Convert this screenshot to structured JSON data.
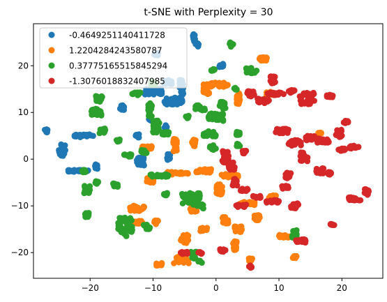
{
  "chart_data": {
    "type": "scatter",
    "title": "t-SNE with Perplexity = 30",
    "xlabel": "",
    "ylabel": "",
    "xlim": [
      -29.0,
      26.5
    ],
    "ylim": [
      -25.5,
      29.0
    ],
    "x_ticks": [
      {
        "value": -20,
        "label": "−20"
      },
      {
        "value": -10,
        "label": "−10"
      },
      {
        "value": 0,
        "label": "0"
      },
      {
        "value": 10,
        "label": "10"
      },
      {
        "value": 20,
        "label": "20"
      }
    ],
    "y_ticks": [
      {
        "value": -20,
        "label": "−20"
      },
      {
        "value": -10,
        "label": "−10"
      },
      {
        "value": 0,
        "label": "0"
      },
      {
        "value": 10,
        "label": "10"
      },
      {
        "value": 20,
        "label": "20"
      }
    ],
    "grid": false,
    "legend_position": "top-left",
    "series": [
      {
        "name": "-0.4649251140411728",
        "color": "#1f77b4",
        "clusters": [
          {
            "x": -27.0,
            "y": 6.0,
            "dx": 0.3,
            "dy": 0.4
          },
          {
            "x": -24.5,
            "y": 2.0,
            "dx": 0.6,
            "dy": 1.3
          },
          {
            "x": -21.0,
            "y": 5.0,
            "dx": 1.5,
            "dy": 0.3
          },
          {
            "x": -22.0,
            "y": -2.5,
            "dx": 1.8,
            "dy": 0.2
          },
          {
            "x": -19.0,
            "y": -1.5,
            "dx": 0.3,
            "dy": 0.6
          },
          {
            "x": -12.0,
            "y": -0.5,
            "dx": 0.6,
            "dy": 0.9
          },
          {
            "x": -7.5,
            "y": 0.5,
            "dx": 0.3,
            "dy": 0.7
          },
          {
            "x": -5.5,
            "y": 14.5,
            "dx": 0.3,
            "dy": 2.5
          },
          {
            "x": -7.5,
            "y": 16.5,
            "dx": 0.7,
            "dy": 0.5
          },
          {
            "x": -10.0,
            "y": 14.5,
            "dx": 1.5,
            "dy": 0.7
          },
          {
            "x": -7.0,
            "y": 12.5,
            "dx": 1.2,
            "dy": 0.8
          },
          {
            "x": -3.5,
            "y": 26.0,
            "dx": 0.2,
            "dy": 0.8
          },
          {
            "x": -3.0,
            "y": 24.5,
            "dx": 0.3,
            "dy": 0.4
          },
          {
            "x": 0.8,
            "y": 20.0,
            "dx": 0.4,
            "dy": 0.4
          },
          {
            "x": -9.5,
            "y": 22.5,
            "dx": 0.3,
            "dy": 0.3
          },
          {
            "x": -15.0,
            "y": 11.0,
            "dx": 0.4,
            "dy": 0.6
          },
          {
            "x": -12.5,
            "y": 5.0,
            "dx": 0.3,
            "dy": 0.4
          },
          {
            "x": -10.5,
            "y": 8.5,
            "dx": 0.2,
            "dy": 0.3
          },
          {
            "x": -8.0,
            "y": 7.0,
            "dx": 0.2,
            "dy": 0.3
          }
        ]
      },
      {
        "name": "1.2204284243580787",
        "color": "#ff7f0e",
        "clusters": [
          {
            "x": 7.5,
            "y": 21.5,
            "dx": 0.6,
            "dy": 0.4
          },
          {
            "x": -1.5,
            "y": 15.0,
            "dx": 0.5,
            "dy": 1.2
          },
          {
            "x": 0.5,
            "y": 16.0,
            "dx": 1.5,
            "dy": 0.5
          },
          {
            "x": 3.5,
            "y": 13.0,
            "dx": 0.3,
            "dy": 1.2
          },
          {
            "x": 8.5,
            "y": 14.0,
            "dx": 0.5,
            "dy": 0.5
          },
          {
            "x": -11.0,
            "y": 2.5,
            "dx": 0.8,
            "dy": 0.3
          },
          {
            "x": -6.5,
            "y": 3.0,
            "dx": 0.3,
            "dy": 1.4
          },
          {
            "x": -3.5,
            "y": 3.5,
            "dx": 0.3,
            "dy": 0.8
          },
          {
            "x": -6.0,
            "y": -3.0,
            "dx": 1.8,
            "dy": 0.3
          },
          {
            "x": -2.0,
            "y": -2.5,
            "dx": 1.3,
            "dy": 0.4
          },
          {
            "x": -10.5,
            "y": -4.5,
            "dx": 0.6,
            "dy": 0.6
          },
          {
            "x": -12.5,
            "y": -10.5,
            "dx": 1.2,
            "dy": 0.6
          },
          {
            "x": -12.5,
            "y": -13.5,
            "dx": 1.0,
            "dy": 0.3
          },
          {
            "x": -9.0,
            "y": -22.5,
            "dx": 0.5,
            "dy": 0.3
          },
          {
            "x": -3.5,
            "y": -9.5,
            "dx": 0.6,
            "dy": 1.8
          },
          {
            "x": 0.5,
            "y": -6.5,
            "dx": 0.5,
            "dy": 1.2
          },
          {
            "x": 2.0,
            "y": -3.5,
            "dx": 1.5,
            "dy": 0.4
          },
          {
            "x": -5.0,
            "y": -17.0,
            "dx": 0.6,
            "dy": 1.0
          },
          {
            "x": -5.5,
            "y": -21.5,
            "dx": 1.2,
            "dy": 0.8
          },
          {
            "x": -2.0,
            "y": -15.0,
            "dx": 0.6,
            "dy": 0.4
          },
          {
            "x": 1.5,
            "y": -13.0,
            "dx": 0.5,
            "dy": 0.8
          },
          {
            "x": 3.5,
            "y": -15.0,
            "dx": 0.8,
            "dy": 0.6
          },
          {
            "x": 3.0,
            "y": -18.5,
            "dx": 0.3,
            "dy": 1.0
          },
          {
            "x": 5.5,
            "y": -21.5,
            "dx": 0.3,
            "dy": 0.3
          },
          {
            "x": 5.0,
            "y": -9.5,
            "dx": 1.2,
            "dy": 0.4
          },
          {
            "x": 6.5,
            "y": -12.5,
            "dx": 0.5,
            "dy": 0.6
          },
          {
            "x": 11.0,
            "y": -16.5,
            "dx": 1.0,
            "dy": 0.3
          },
          {
            "x": 12.5,
            "y": -21.0,
            "dx": 0.3,
            "dy": 0.3
          },
          {
            "x": 9.0,
            "y": -8.0,
            "dx": 0.6,
            "dy": 0.3
          },
          {
            "x": 16.5,
            "y": 5.5,
            "dx": 0.3,
            "dy": 0.3
          },
          {
            "x": -9.5,
            "y": -13.5,
            "dx": 0.3,
            "dy": 0.5
          }
        ]
      },
      {
        "name": "0.37775165515845294",
        "color": "#2ca02c",
        "clusters": [
          {
            "x": -18.5,
            "y": 13.0,
            "dx": 0.6,
            "dy": 0.7
          },
          {
            "x": -19.0,
            "y": 10.0,
            "dx": 0.8,
            "dy": 0.8
          },
          {
            "x": -18.0,
            "y": 6.0,
            "dx": 0.5,
            "dy": 0.6
          },
          {
            "x": -15.5,
            "y": 4.0,
            "dx": 0.3,
            "dy": 0.3
          },
          {
            "x": -10.0,
            "y": 16.5,
            "dx": 0.4,
            "dy": 0.6
          },
          {
            "x": -10.5,
            "y": 10.5,
            "dx": 0.3,
            "dy": 1.5
          },
          {
            "x": -12.5,
            "y": 14.0,
            "dx": 0.8,
            "dy": 0.3
          },
          {
            "x": -9.5,
            "y": 7.0,
            "dx": 0.5,
            "dy": 1.3
          },
          {
            "x": -8.0,
            "y": 5.5,
            "dx": 0.6,
            "dy": 0.3
          },
          {
            "x": -14.0,
            "y": 0.8,
            "dx": 0.6,
            "dy": 0.3
          },
          {
            "x": -11.5,
            "y": 1.5,
            "dx": 0.5,
            "dy": 0.5
          },
          {
            "x": -21.0,
            "y": -2.5,
            "dx": 0.3,
            "dy": 0.3
          },
          {
            "x": -20.5,
            "y": -6.5,
            "dx": 0.5,
            "dy": 0.8
          },
          {
            "x": -19.0,
            "y": -5.0,
            "dx": 0.3,
            "dy": 0.3
          },
          {
            "x": -16.0,
            "y": -5.5,
            "dx": 0.4,
            "dy": 0.4
          },
          {
            "x": -20.5,
            "y": -12.0,
            "dx": 0.3,
            "dy": 0.5
          },
          {
            "x": -14.5,
            "y": -14.5,
            "dx": 1.2,
            "dy": 2.0
          },
          {
            "x": -11.0,
            "y": -14.5,
            "dx": 0.5,
            "dy": 0.6
          },
          {
            "x": -9.0,
            "y": -3.5,
            "dx": 1.5,
            "dy": 0.3
          },
          {
            "x": -8.0,
            "y": -7.5,
            "dx": 0.3,
            "dy": 0.3
          },
          {
            "x": -4.0,
            "y": -8.5,
            "dx": 1.5,
            "dy": 1.3
          },
          {
            "x": -2.5,
            "y": -10.0,
            "dx": 0.5,
            "dy": 0.6
          },
          {
            "x": -2.5,
            "y": 11.0,
            "dx": 0.8,
            "dy": 0.6
          },
          {
            "x": 0.0,
            "y": 9.0,
            "dx": 1.2,
            "dy": 0.8
          },
          {
            "x": 1.0,
            "y": 11.5,
            "dx": 0.5,
            "dy": 0.8
          },
          {
            "x": -4.5,
            "y": 9.0,
            "dx": 0.4,
            "dy": 0.3
          },
          {
            "x": -1.0,
            "y": 5.5,
            "dx": 1.0,
            "dy": 0.6
          },
          {
            "x": -0.5,
            "y": 2.5,
            "dx": 0.5,
            "dy": 0.5
          },
          {
            "x": -0.5,
            "y": 19.0,
            "dx": 0.3,
            "dy": 0.3
          },
          {
            "x": 2.5,
            "y": 24.5,
            "dx": 0.4,
            "dy": 0.5
          },
          {
            "x": 5.5,
            "y": 19.0,
            "dx": 1.0,
            "dy": 0.6
          },
          {
            "x": 3.0,
            "y": 15.0,
            "dx": 0.3,
            "dy": 0.3
          },
          {
            "x": -3.5,
            "y": -20.5,
            "dx": 0.5,
            "dy": 0.8
          },
          {
            "x": -2.5,
            "y": -22.0,
            "dx": 0.3,
            "dy": 0.3
          },
          {
            "x": 12.5,
            "y": -16.0,
            "dx": 0.4,
            "dy": 0.8
          },
          {
            "x": 3.5,
            "y": 3.0,
            "dx": 0.3,
            "dy": 0.3
          },
          {
            "x": 3.5,
            "y": 5.5,
            "dx": 0.3,
            "dy": 0.4
          }
        ]
      },
      {
        "name": "-1.3076018832407985",
        "color": "#d62728",
        "clusters": [
          {
            "x": 5.5,
            "y": 14.0,
            "dx": 0.6,
            "dy": 0.6
          },
          {
            "x": 7.5,
            "y": 12.5,
            "dx": 1.0,
            "dy": 0.5
          },
          {
            "x": 9.5,
            "y": 14.0,
            "dx": 1.4,
            "dy": 0.3
          },
          {
            "x": 9.0,
            "y": 17.0,
            "dx": 0.4,
            "dy": 0.8
          },
          {
            "x": 12.0,
            "y": 14.5,
            "dx": 0.5,
            "dy": 0.3
          },
          {
            "x": 14.5,
            "y": 13.0,
            "dx": 1.2,
            "dy": 1.3
          },
          {
            "x": 18.0,
            "y": 13.5,
            "dx": 0.6,
            "dy": 0.3
          },
          {
            "x": 10.5,
            "y": 6.0,
            "dx": 1.0,
            "dy": 0.5
          },
          {
            "x": 12.5,
            "y": 3.5,
            "dx": 1.0,
            "dy": 0.6
          },
          {
            "x": 15.0,
            "y": 4.5,
            "dx": 0.8,
            "dy": 0.5
          },
          {
            "x": 17.0,
            "y": 4.0,
            "dx": 1.0,
            "dy": 0.5
          },
          {
            "x": 19.5,
            "y": 5.5,
            "dx": 0.5,
            "dy": 0.8
          },
          {
            "x": 20.5,
            "y": 8.0,
            "dx": 0.5,
            "dy": 0.3
          },
          {
            "x": 22.0,
            "y": 2.5,
            "dx": 0.8,
            "dy": 0.4
          },
          {
            "x": 20.0,
            "y": 2.0,
            "dx": 0.6,
            "dy": 0.3
          },
          {
            "x": 14.0,
            "y": 0.5,
            "dx": 0.6,
            "dy": 1.0
          },
          {
            "x": 16.5,
            "y": -2.5,
            "dx": 0.6,
            "dy": 0.6
          },
          {
            "x": 18.0,
            "y": -3.0,
            "dx": 0.3,
            "dy": 0.3
          },
          {
            "x": 24.0,
            "y": -7.0,
            "dx": 0.4,
            "dy": 0.8
          },
          {
            "x": 22.0,
            "y": -8.5,
            "dx": 1.0,
            "dy": 0.4
          },
          {
            "x": 11.5,
            "y": -3.5,
            "dx": 0.5,
            "dy": 0.6
          },
          {
            "x": 11.0,
            "y": -6.0,
            "dx": 0.5,
            "dy": 0.3
          },
          {
            "x": 9.0,
            "y": -9.0,
            "dx": 1.0,
            "dy": 0.3
          },
          {
            "x": 12.5,
            "y": -10.0,
            "dx": 0.6,
            "dy": 0.6
          },
          {
            "x": 13.5,
            "y": -17.5,
            "dx": 0.8,
            "dy": 0.4
          },
          {
            "x": 18.5,
            "y": -14.0,
            "dx": 0.3,
            "dy": 0.3
          },
          {
            "x": 1.5,
            "y": 0.5,
            "dx": 0.5,
            "dy": 1.3
          },
          {
            "x": 2.5,
            "y": -1.5,
            "dx": 0.5,
            "dy": 0.8
          },
          {
            "x": 3.0,
            "y": -5.0,
            "dx": 0.4,
            "dy": 0.8
          },
          {
            "x": 4.5,
            "y": -6.5,
            "dx": 0.6,
            "dy": 0.4
          },
          {
            "x": 4.0,
            "y": -10.0,
            "dx": 0.8,
            "dy": 0.3
          },
          {
            "x": 6.5,
            "y": -8.0,
            "dx": 0.6,
            "dy": 0.3
          },
          {
            "x": 4.5,
            "y": 1.5,
            "dx": 0.3,
            "dy": 0.3
          },
          {
            "x": 1.0,
            "y": -19.5,
            "dx": 0.5,
            "dy": 0.3
          },
          {
            "x": -2.5,
            "y": -20.0,
            "dx": 0.3,
            "dy": 0.3
          },
          {
            "x": -5.0,
            "y": -20.0,
            "dx": 0.6,
            "dy": 0.3
          },
          {
            "x": 5.5,
            "y": -23.0,
            "dx": 0.3,
            "dy": 0.3
          }
        ]
      }
    ]
  }
}
